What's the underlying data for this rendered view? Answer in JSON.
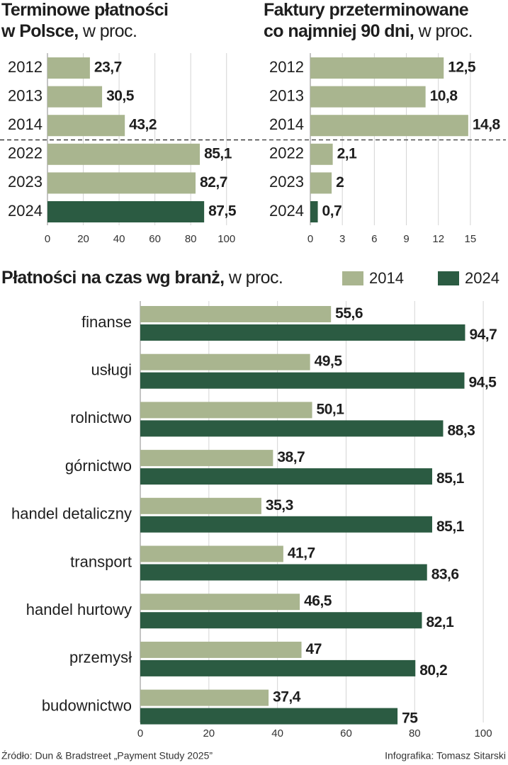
{
  "chart_data": [
    {
      "type": "bar",
      "orientation": "horizontal",
      "title_lines": [
        "Terminowe płatności",
        "w Polsce,"
      ],
      "unit": "w proc.",
      "categories": [
        "2012",
        "2013",
        "2014",
        "2022",
        "2023",
        "2024"
      ],
      "values": [
        23.7,
        30.5,
        43.2,
        85.1,
        82.7,
        87.5
      ],
      "value_labels": [
        "23,7",
        "30,5",
        "43,2",
        "85,1",
        "82,7",
        "87,5"
      ],
      "colors": [
        "#a9b58f",
        "#a9b58f",
        "#a9b58f",
        "#a9b58f",
        "#a9b58f",
        "#2b5b42"
      ],
      "xlim": [
        0,
        110
      ],
      "xticks": [
        0,
        20,
        40,
        60,
        80,
        100
      ],
      "grid": true
    },
    {
      "type": "bar",
      "orientation": "horizontal",
      "title_lines": [
        "Faktury przeterminowane",
        "co najmniej 90 dni,"
      ],
      "unit": "w proc.",
      "categories": [
        "2012",
        "2013",
        "2014",
        "2022",
        "2023",
        "2024"
      ],
      "values": [
        12.5,
        10.8,
        14.8,
        2.1,
        2,
        0.7
      ],
      "value_labels": [
        "12,5",
        "10,8",
        "14,8",
        "2,1",
        "2",
        "0,7"
      ],
      "colors": [
        "#a9b58f",
        "#a9b58f",
        "#a9b58f",
        "#a9b58f",
        "#a9b58f",
        "#2b5b42"
      ],
      "xlim": [
        0,
        17
      ],
      "xticks": [
        0,
        3,
        6,
        9,
        12,
        15
      ],
      "grid": true
    },
    {
      "type": "grouped_bar",
      "orientation": "horizontal",
      "title_lines": [
        "Płatności na czas wg branż,"
      ],
      "unit": "w proc.",
      "categories": [
        "finanse",
        "usługi",
        "rolnictwo",
        "górnictwo",
        "handel detaliczny",
        "transport",
        "handel hurtowy",
        "przemysł",
        "budownictwo"
      ],
      "series": [
        {
          "name": "2014",
          "color": "#a9b58f",
          "values": [
            55.6,
            49.5,
            50.1,
            38.7,
            35.3,
            41.7,
            46.5,
            47,
            37.4
          ],
          "value_labels": [
            "55,6",
            "49,5",
            "50,1",
            "38,7",
            "35,3",
            "41,7",
            "46,5",
            "47",
            "37,4"
          ]
        },
        {
          "name": "2024",
          "color": "#2b5b42",
          "values": [
            94.7,
            94.5,
            88.3,
            85.1,
            85.1,
            83.6,
            82.1,
            80.2,
            75
          ],
          "value_labels": [
            "94,7",
            "94,5",
            "88,3",
            "85,1",
            "85,1",
            "83,6",
            "82,1",
            "80,2",
            "75"
          ]
        }
      ],
      "xlim": [
        0,
        107
      ],
      "xticks": [
        0,
        20,
        40,
        60,
        80,
        100
      ],
      "grid": true,
      "legend": "top-right"
    }
  ],
  "footer": {
    "source": "Źródło: Dun & Bradstreet „Payment Study 2025”",
    "credit": "Infografika: Tomasz Sitarski"
  }
}
